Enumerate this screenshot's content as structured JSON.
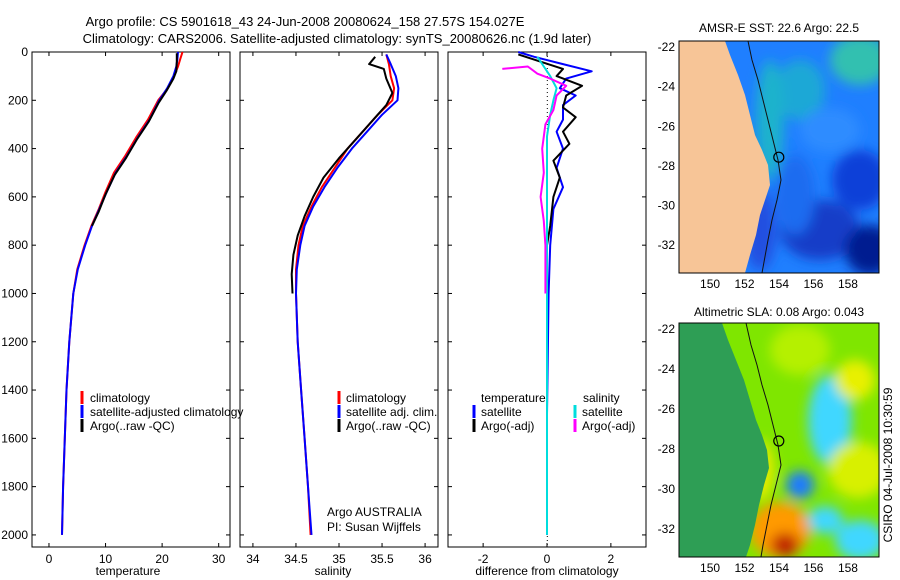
{
  "header": {
    "line1": "Argo profile: CS 5901618_43 24-Jun-2008 20080624_158 27.57S 154.027E",
    "line2": "Climatology: CARS2006. Satellite-adjusted climatology: synTS_20080626.nc (1.9d later)"
  },
  "side_label": "CSIRO 04-Jul-2008 10:30:59",
  "legend_temp": {
    "items": [
      "climatology",
      "satellite-adjusted climatology",
      "Argo(..raw -QC)"
    ]
  },
  "legend_sal": {
    "items": [
      "climatology",
      "satellite adj. clim.",
      "Argo(..raw -QC)"
    ]
  },
  "legend_diff": {
    "col1_title": "temperature",
    "col2_title": "salinity",
    "col1": [
      "satellite",
      "Argo(-adj)"
    ],
    "col2": [
      "satellite",
      "Argo(-adj)"
    ]
  },
  "credit": {
    "line1": "Argo AUSTRALIA",
    "line2": "PI: Susan Wijffels"
  },
  "colors": {
    "climatology": "#ff0000",
    "satellite": "#0000ff",
    "argo": "#000000",
    "sal_satellite": "#00dddd",
    "sal_argo": "#ff00ff",
    "land": "#f7c597",
    "sst_ocean": "#1f7fff",
    "sla_ocean": "#7fe600"
  },
  "chart_data": [
    {
      "type": "line",
      "xlabel": "temperature",
      "ylabel": "",
      "xlim": [
        -3,
        32
      ],
      "ylim": [
        2050,
        0
      ],
      "xticks": [
        "0",
        "10",
        "20",
        "30"
      ],
      "yticks": [
        "0",
        "200",
        "400",
        "600",
        "800",
        "1000",
        "1200",
        "1400",
        "1600",
        "1800",
        "2000"
      ],
      "series": [
        {
          "name": "climatology",
          "color": "#ff0000",
          "points": [
            [
              23.6,
              0
            ],
            [
              23.2,
              30
            ],
            [
              22.8,
              60
            ],
            [
              22.1,
              100
            ],
            [
              21,
              150
            ],
            [
              19.3,
              200
            ],
            [
              17.5,
              280
            ],
            [
              15.5,
              350
            ],
            [
              13.5,
              430
            ],
            [
              11.5,
              500
            ],
            [
              10,
              580
            ],
            [
              8.8,
              650
            ],
            [
              7.5,
              720
            ],
            [
              6.3,
              800
            ],
            [
              5,
              900
            ],
            [
              4.3,
              1000
            ],
            [
              3.6,
              1200
            ],
            [
              3.1,
              1400
            ],
            [
              2.8,
              1600
            ],
            [
              2.5,
              1800
            ],
            [
              2.3,
              2000
            ]
          ]
        },
        {
          "name": "satellite-adjusted climatology",
          "color": "#0000ff",
          "points": [
            [
              22.8,
              0
            ],
            [
              22.7,
              30
            ],
            [
              22.5,
              60
            ],
            [
              22,
              100
            ],
            [
              20.9,
              150
            ],
            [
              19.5,
              200
            ],
            [
              17.8,
              280
            ],
            [
              15.8,
              350
            ],
            [
              13.8,
              430
            ],
            [
              11.8,
              500
            ],
            [
              10.2,
              580
            ],
            [
              8.9,
              650
            ],
            [
              7.6,
              720
            ],
            [
              6.4,
              800
            ],
            [
              5.1,
              900
            ],
            [
              4.3,
              1000
            ],
            [
              3.6,
              1200
            ],
            [
              3.1,
              1400
            ],
            [
              2.8,
              1600
            ],
            [
              2.5,
              1800
            ],
            [
              2.3,
              2000
            ]
          ]
        },
        {
          "name": "Argo(..raw -QC)",
          "color": "#000000",
          "points": [
            [
              22.6,
              5
            ],
            [
              22.6,
              40
            ],
            [
              22.5,
              80
            ],
            [
              22,
              110
            ],
            [
              20.8,
              160
            ],
            [
              19.4,
              210
            ],
            [
              17.6,
              290
            ],
            [
              15.6,
              360
            ],
            [
              13.6,
              440
            ],
            [
              11.6,
              510
            ],
            [
              10,
              590
            ],
            [
              8.8,
              660
            ],
            [
              7.6,
              720
            ]
          ]
        }
      ]
    },
    {
      "type": "line",
      "xlabel": "salinity",
      "ylabel": "",
      "xlim": [
        33.85,
        36.15
      ],
      "ylim": [
        2050,
        0
      ],
      "xticks": [
        "34",
        "34.5",
        "35",
        "35.5",
        "36"
      ],
      "series": [
        {
          "name": "climatology",
          "color": "#ff0000",
          "points": [
            [
              35.55,
              10
            ],
            [
              35.58,
              50
            ],
            [
              35.6,
              100
            ],
            [
              35.64,
              150
            ],
            [
              35.62,
              200
            ],
            [
              35.45,
              260
            ],
            [
              35.3,
              320
            ],
            [
              35.1,
              400
            ],
            [
              34.95,
              480
            ],
            [
              34.8,
              560
            ],
            [
              34.68,
              640
            ],
            [
              34.58,
              720
            ],
            [
              34.53,
              800
            ],
            [
              34.5,
              900
            ],
            [
              34.5,
              1000
            ],
            [
              34.52,
              1200
            ],
            [
              34.56,
              1400
            ],
            [
              34.6,
              1600
            ],
            [
              34.64,
              1800
            ],
            [
              34.67,
              2000
            ]
          ]
        },
        {
          "name": "satellite adj. clim.",
          "color": "#0000ff",
          "points": [
            [
              35.55,
              10
            ],
            [
              35.6,
              50
            ],
            [
              35.66,
              100
            ],
            [
              35.69,
              150
            ],
            [
              35.68,
              200
            ],
            [
              35.5,
              260
            ],
            [
              35.35,
              320
            ],
            [
              35.15,
              400
            ],
            [
              34.98,
              480
            ],
            [
              34.83,
              560
            ],
            [
              34.7,
              640
            ],
            [
              34.6,
              720
            ],
            [
              34.55,
              800
            ],
            [
              34.51,
              900
            ],
            [
              34.5,
              1000
            ],
            [
              34.52,
              1200
            ],
            [
              34.56,
              1400
            ],
            [
              34.6,
              1600
            ],
            [
              34.64,
              1800
            ],
            [
              34.68,
              2000
            ]
          ]
        },
        {
          "name": "Argo(..raw -QC)",
          "color": "#000000",
          "points": [
            [
              35.42,
              20
            ],
            [
              35.35,
              50
            ],
            [
              35.52,
              70
            ],
            [
              35.55,
              110
            ],
            [
              35.62,
              170
            ],
            [
              35.55,
              220
            ],
            [
              35.4,
              280
            ],
            [
              35.2,
              360
            ],
            [
              35,
              440
            ],
            [
              34.82,
              520
            ],
            [
              34.7,
              600
            ],
            [
              34.6,
              680
            ],
            [
              34.52,
              760
            ],
            [
              34.47,
              840
            ],
            [
              34.45,
              920
            ],
            [
              34.46,
              1000
            ]
          ]
        }
      ]
    },
    {
      "type": "line",
      "xlabel": "difference from climatology",
      "ylabel": "",
      "xlim": [
        -3.1,
        3.1
      ],
      "ylim": [
        2050,
        0
      ],
      "xticks": [
        "-2",
        "0",
        "2"
      ],
      "series": [
        {
          "name": "temperature satellite",
          "color": "#0000ff",
          "points": [
            [
              -0.9,
              0
            ],
            [
              -0.4,
              20
            ],
            [
              0.5,
              50
            ],
            [
              1.4,
              80
            ],
            [
              0.6,
              110
            ],
            [
              0.4,
              150
            ],
            [
              0.9,
              180
            ],
            [
              0.5,
              220
            ],
            [
              0.5,
              280
            ],
            [
              0.3,
              330
            ],
            [
              0.5,
              400
            ],
            [
              0.3,
              480
            ],
            [
              0.5,
              560
            ],
            [
              0.2,
              650
            ],
            [
              0.1,
              800
            ],
            [
              0.05,
              1000
            ],
            [
              0,
              1500
            ],
            [
              0,
              2000
            ]
          ]
        },
        {
          "name": "temperature Argo(-adj)",
          "color": "#000000",
          "points": [
            [
              -0.9,
              10
            ],
            [
              -0.2,
              40
            ],
            [
              0.5,
              70
            ],
            [
              0.3,
              100
            ],
            [
              1.1,
              140
            ],
            [
              0.6,
              180
            ],
            [
              0.5,
              230
            ],
            [
              0.9,
              270
            ],
            [
              0.5,
              330
            ],
            [
              0.7,
              380
            ],
            [
              0.2,
              450
            ],
            [
              0.4,
              520
            ],
            [
              0.2,
              600
            ],
            [
              0.1,
              720
            ],
            [
              0,
              800
            ]
          ]
        },
        {
          "name": "salinity satellite",
          "color": "#00dddd",
          "points": [
            [
              -0.3,
              20
            ],
            [
              -0.1,
              60
            ],
            [
              0.1,
              100
            ],
            [
              0.3,
              150
            ],
            [
              0.2,
              200
            ],
            [
              0.1,
              260
            ],
            [
              0,
              350
            ],
            [
              0,
              500
            ],
            [
              0,
              800
            ],
            [
              0,
              1200
            ],
            [
              0,
              1600
            ],
            [
              0,
              2000
            ]
          ]
        },
        {
          "name": "salinity Argo(-adj)",
          "color": "#ff00ff",
          "points": [
            [
              -1.4,
              70
            ],
            [
              -0.6,
              60
            ],
            [
              -0.3,
              90
            ],
            [
              0.1,
              110
            ],
            [
              0.6,
              140
            ],
            [
              0.3,
              180
            ],
            [
              0.2,
              240
            ],
            [
              -0.05,
              300
            ],
            [
              -0.15,
              400
            ],
            [
              -0.1,
              500
            ],
            [
              -0.2,
              600
            ],
            [
              -0.1,
              700
            ],
            [
              -0.05,
              800
            ],
            [
              -0.05,
              1000
            ]
          ]
        }
      ]
    },
    {
      "type": "heatmap",
      "title": "AMSR-E SST: 22.6 Argo: 22.5",
      "xlim": [
        148.2,
        159.8
      ],
      "ylim": [
        -33.4,
        -21.7
      ],
      "xticks": [
        "150",
        "152",
        "154",
        "156",
        "158"
      ],
      "yticks": [
        "-22",
        "-24",
        "-26",
        "-28",
        "-30",
        "-32"
      ],
      "argo_position": [
        154.03,
        -27.57
      ]
    },
    {
      "type": "heatmap",
      "title": "Altimetric SLA: 0.08 Argo: 0.043",
      "xlim": [
        148.2,
        159.8
      ],
      "ylim": [
        -33.4,
        -21.7
      ],
      "xticks": [
        "150",
        "152",
        "154",
        "156",
        "158"
      ],
      "yticks": [
        "-22",
        "-24",
        "-26",
        "-28",
        "-30",
        "-32"
      ],
      "argo_position": [
        154.03,
        -27.57
      ]
    }
  ]
}
